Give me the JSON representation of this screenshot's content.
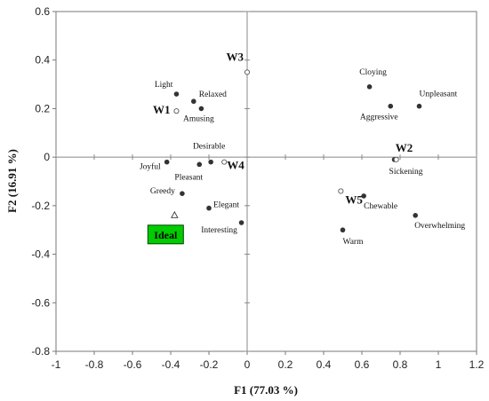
{
  "chart_data": {
    "type": "scatter",
    "title": "",
    "xlabel": "F1 (77.03 %)",
    "ylabel": "F2 (16.91 %)",
    "xlim": [
      -1,
      1.2
    ],
    "ylim": [
      -0.8,
      0.6
    ],
    "xticks": [
      -1,
      -0.8,
      -0.6,
      -0.4,
      -0.2,
      0,
      0.2,
      0.4,
      0.6,
      0.8,
      1,
      1.2
    ],
    "yticks": [
      -0.8,
      -0.6,
      -0.4,
      -0.2,
      0,
      0.2,
      0.4,
      0.6
    ],
    "xtick_labels": [
      "-1",
      "-0.8",
      "-0.6",
      "-0.4",
      "-0.2",
      "0",
      "0.2",
      "0.4",
      "0.6",
      "0.8",
      "1",
      "1.2"
    ],
    "ytick_labels": [
      "-0.8",
      "-0.6",
      "-0.4",
      "-0.2",
      "0",
      "0.2",
      "0.4",
      "0.6"
    ],
    "grid": false,
    "series": [
      {
        "marker": "filled-circle",
        "color": "#333333",
        "points": [
          {
            "label": "Light",
            "x": -0.37,
            "y": 0.26
          },
          {
            "label": "Relaxed",
            "x": -0.28,
            "y": 0.23
          },
          {
            "label": "Amusing",
            "x": -0.24,
            "y": 0.2
          },
          {
            "label": "Cloying",
            "x": 0.64,
            "y": 0.29
          },
          {
            "label": "Aggressive",
            "x": 0.75,
            "y": 0.21
          },
          {
            "label": "Unpleasant",
            "x": 0.9,
            "y": 0.21
          },
          {
            "label": "Desirable",
            "x": -0.19,
            "y": -0.02
          },
          {
            "label": "Joyful",
            "x": -0.42,
            "y": -0.02
          },
          {
            "label": "Pleasant",
            "x": -0.25,
            "y": -0.03
          },
          {
            "label": "Sickening",
            "x": 0.77,
            "y": -0.01
          },
          {
            "label": "Greedy",
            "x": -0.34,
            "y": -0.15
          },
          {
            "label": "Elegant",
            "x": -0.2,
            "y": -0.21
          },
          {
            "label": "Chewable",
            "x": 0.61,
            "y": -0.16
          },
          {
            "label": "Overwhelming",
            "x": 0.88,
            "y": -0.24
          },
          {
            "label": "Interesting",
            "x": -0.03,
            "y": -0.27
          },
          {
            "label": "Warm",
            "x": 0.5,
            "y": -0.3
          }
        ]
      },
      {
        "marker": "open-circle",
        "color": "#555555",
        "points": [
          {
            "label": "W1",
            "x": -0.37,
            "y": 0.19
          },
          {
            "label": "W2",
            "x": 0.78,
            "y": -0.01
          },
          {
            "label": "W3",
            "x": 0.0,
            "y": 0.35
          },
          {
            "label": "W4",
            "x": -0.12,
            "y": -0.02
          },
          {
            "label": "W5",
            "x": 0.49,
            "y": -0.14
          }
        ]
      },
      {
        "marker": "open-triangle",
        "color": "#333333",
        "points": [
          {
            "label": "Ideal",
            "x": -0.38,
            "y": -0.24
          }
        ]
      }
    ],
    "ideal_box_color": "#00cc00"
  }
}
